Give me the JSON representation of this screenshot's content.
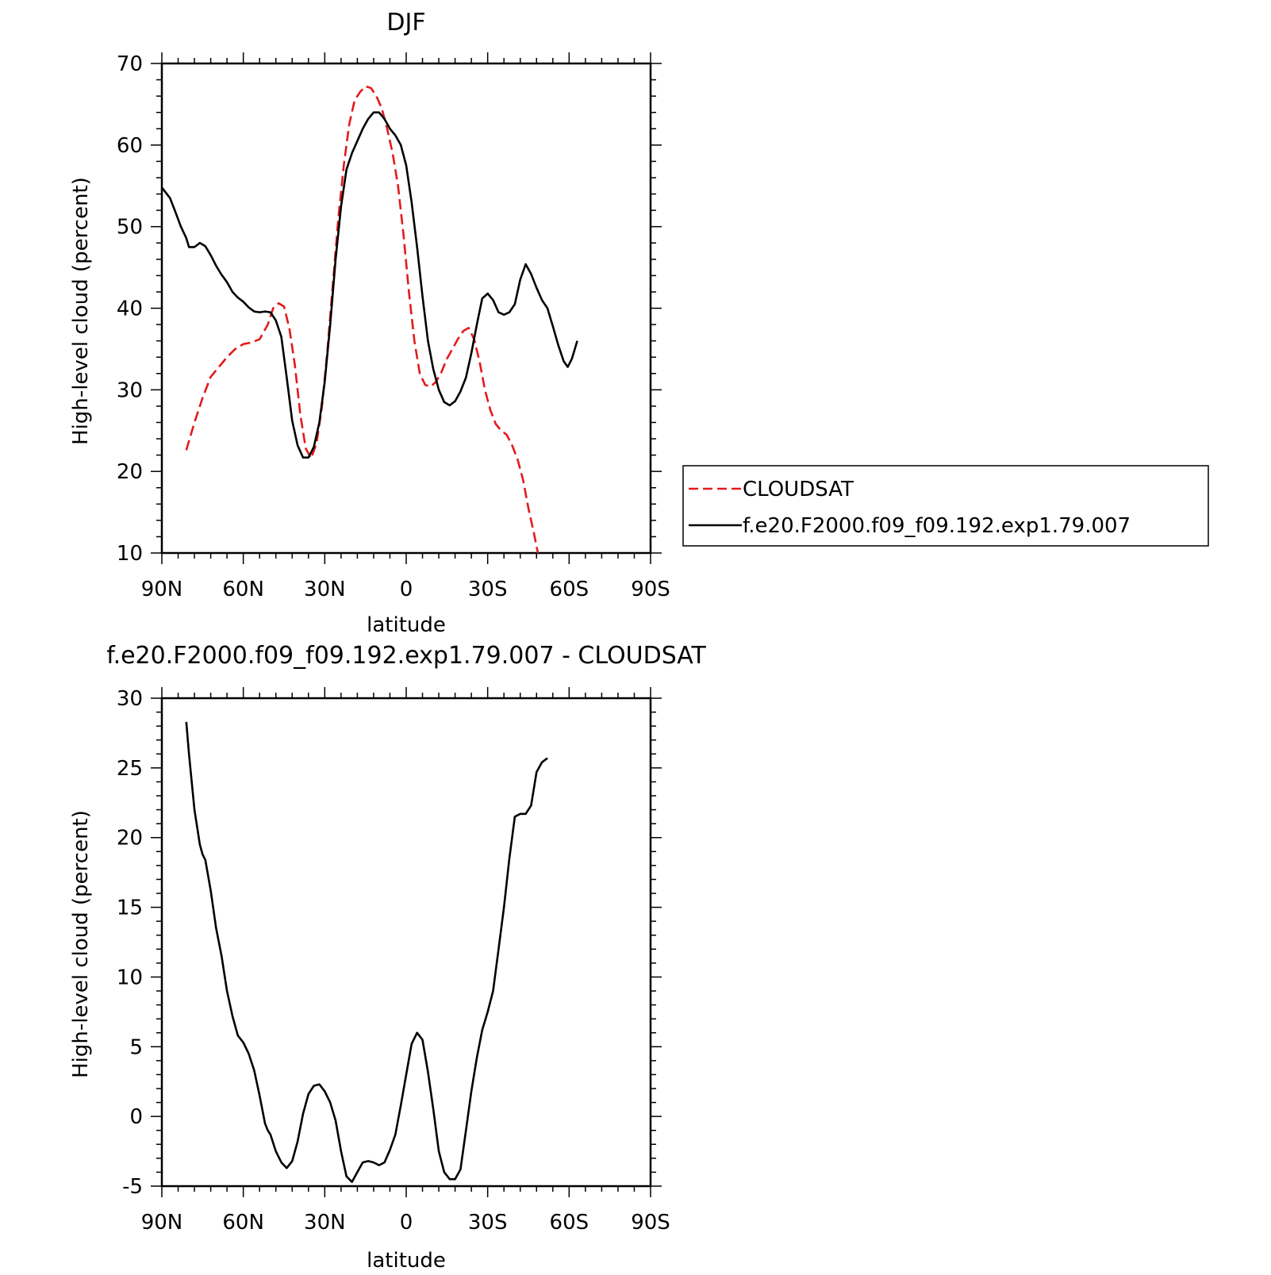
{
  "chart_data": [
    {
      "type": "line",
      "title": "DJF",
      "xlabel": "latitude",
      "ylabel": "High-level cloud (percent)",
      "xlim": [
        90,
        -90
      ],
      "ylim": [
        10,
        70
      ],
      "xtick_values": [
        90,
        60,
        30,
        0,
        -30,
        -60,
        -90
      ],
      "xtick_labels": [
        "90N",
        "60N",
        "30N",
        "0",
        "30S",
        "60S",
        "90S"
      ],
      "ytick_values": [
        10,
        20,
        30,
        40,
        50,
        60,
        70
      ],
      "ytick_labels": [
        "10",
        "20",
        "30",
        "40",
        "50",
        "60",
        "70"
      ],
      "legend_position": "right",
      "series": [
        {
          "name": "CLOUDSAT",
          "color": "#e41a1c",
          "dash": "dashed",
          "points": [
            [
              81,
              22.6
            ],
            [
              78,
              26.0
            ],
            [
              75,
              29.0
            ],
            [
              72,
              31.6
            ],
            [
              69,
              32.8
            ],
            [
              66,
              34.0
            ],
            [
              63,
              35.0
            ],
            [
              60,
              35.6
            ],
            [
              57,
              35.8
            ],
            [
              54,
              36.2
            ],
            [
              51,
              38.0
            ],
            [
              49,
              40.0
            ],
            [
              47,
              40.6
            ],
            [
              45,
              40.2
            ],
            [
              43,
              37.5
            ],
            [
              41,
              33.0
            ],
            [
              39,
              27.0
            ],
            [
              37,
              22.8
            ],
            [
              35,
              21.6
            ],
            [
              33,
              23.5
            ],
            [
              31,
              28.0
            ],
            [
              29,
              35.0
            ],
            [
              27,
              43.0
            ],
            [
              25,
              51.0
            ],
            [
              23,
              57.5
            ],
            [
              21,
              62.5
            ],
            [
              19,
              65.5
            ],
            [
              17,
              66.5
            ],
            [
              15,
              67.2
            ],
            [
              13,
              67.0
            ],
            [
              11,
              66.0
            ],
            [
              9,
              64.5
            ],
            [
              7,
              62.0
            ],
            [
              5,
              59.0
            ],
            [
              3,
              55.0
            ],
            [
              1,
              49.0
            ],
            [
              -1,
              42.0
            ],
            [
              -3,
              36.0
            ],
            [
              -5,
              32.0
            ],
            [
              -7,
              30.6
            ],
            [
              -9,
              30.4
            ],
            [
              -11,
              31.0
            ],
            [
              -13,
              32.2
            ],
            [
              -15,
              33.8
            ],
            [
              -17,
              35.0
            ],
            [
              -19,
              36.2
            ],
            [
              -21,
              37.2
            ],
            [
              -23,
              37.6
            ],
            [
              -25,
              36.2
            ],
            [
              -27,
              33.5
            ],
            [
              -29,
              30.0
            ],
            [
              -31,
              27.5
            ],
            [
              -33,
              25.8
            ],
            [
              -35,
              25.0
            ],
            [
              -37,
              24.5
            ],
            [
              -39,
              23.2
            ],
            [
              -41,
              21.5
            ],
            [
              -43,
              19.0
            ],
            [
              -45,
              15.5
            ],
            [
              -47,
              12.5
            ],
            [
              -48.5,
              10.0
            ]
          ]
        },
        {
          "name": "f.e20.F2000.f09_f09.192.exp1.79.007",
          "color": "#000000",
          "dash": "solid",
          "points": [
            [
              90,
              54.8
            ],
            [
              87,
              53.5
            ],
            [
              85,
              51.8
            ],
            [
              83,
              50.0
            ],
            [
              81,
              48.6
            ],
            [
              80,
              47.5
            ],
            [
              78,
              47.5
            ],
            [
              76,
              48.0
            ],
            [
              74,
              47.6
            ],
            [
              72,
              46.5
            ],
            [
              70,
              45.2
            ],
            [
              68,
              44.1
            ],
            [
              66,
              43.2
            ],
            [
              64,
              42.0
            ],
            [
              62,
              41.3
            ],
            [
              60,
              40.8
            ],
            [
              58,
              40.1
            ],
            [
              56,
              39.6
            ],
            [
              54,
              39.5
            ],
            [
              52,
              39.6
            ],
            [
              50,
              39.5
            ],
            [
              48,
              38.5
            ],
            [
              46,
              36.5
            ],
            [
              44,
              31.5
            ],
            [
              42,
              26.2
            ],
            [
              40,
              23.2
            ],
            [
              38,
              21.7
            ],
            [
              36,
              21.7
            ],
            [
              34,
              23.0
            ],
            [
              32,
              26.0
            ],
            [
              30,
              31.0
            ],
            [
              28,
              38.0
            ],
            [
              26,
              46.0
            ],
            [
              24,
              52.5
            ],
            [
              22,
              57.0
            ],
            [
              20,
              59.0
            ],
            [
              18,
              60.5
            ],
            [
              16,
              62.0
            ],
            [
              14,
              63.2
            ],
            [
              12,
              64.0
            ],
            [
              10,
              64.0
            ],
            [
              8,
              63.2
            ],
            [
              6,
              62.0
            ],
            [
              4,
              61.2
            ],
            [
              2,
              60.0
            ],
            [
              0,
              57.5
            ],
            [
              -2,
              53.0
            ],
            [
              -4,
              47.5
            ],
            [
              -6,
              41.5
            ],
            [
              -8,
              36.0
            ],
            [
              -10,
              32.5
            ],
            [
              -12,
              30.0
            ],
            [
              -14,
              28.5
            ],
            [
              -16,
              28.1
            ],
            [
              -18,
              28.6
            ],
            [
              -20,
              29.8
            ],
            [
              -22,
              31.5
            ],
            [
              -24,
              34.5
            ],
            [
              -26,
              38.0
            ],
            [
              -28,
              41.2
            ],
            [
              -30,
              41.8
            ],
            [
              -32,
              41.0
            ],
            [
              -34,
              39.5
            ],
            [
              -36,
              39.2
            ],
            [
              -38,
              39.5
            ],
            [
              -40,
              40.5
            ],
            [
              -42,
              43.5
            ],
            [
              -44,
              45.4
            ],
            [
              -46,
              44.2
            ],
            [
              -48,
              42.5
            ],
            [
              -50,
              41.0
            ],
            [
              -52,
              40.0
            ],
            [
              -54,
              37.8
            ],
            [
              -56,
              35.5
            ],
            [
              -58,
              33.5
            ],
            [
              -59.5,
              32.8
            ],
            [
              -61,
              33.8
            ],
            [
              -63,
              36.0
            ]
          ]
        }
      ]
    },
    {
      "type": "line",
      "title": "f.e20.F2000.f09_f09.192.exp1.79.007 - CLOUDSAT",
      "xlabel": "latitude",
      "ylabel": "High-level cloud (percent)",
      "xlim": [
        90,
        -90
      ],
      "ylim": [
        -5,
        30
      ],
      "xtick_values": [
        90,
        60,
        30,
        0,
        -30,
        -60,
        -90
      ],
      "xtick_labels": [
        "90N",
        "60N",
        "30N",
        "0",
        "30S",
        "60S",
        "90S"
      ],
      "ytick_values": [
        -5,
        0,
        5,
        10,
        15,
        20,
        25,
        30
      ],
      "ytick_labels": [
        "-5",
        "0",
        "5",
        "10",
        "15",
        "20",
        "25",
        "30"
      ],
      "series": [
        {
          "color": "#000000",
          "dash": "solid",
          "points": [
            [
              81,
              28.3
            ],
            [
              80,
              26.0
            ],
            [
              78,
              22.0
            ],
            [
              76,
              19.5
            ],
            [
              75,
              18.8
            ],
            [
              74,
              18.4
            ],
            [
              72,
              16.2
            ],
            [
              70,
              13.5
            ],
            [
              68,
              11.5
            ],
            [
              66,
              9.0
            ],
            [
              64,
              7.2
            ],
            [
              62,
              5.8
            ],
            [
              60,
              5.3
            ],
            [
              58,
              4.5
            ],
            [
              56,
              3.3
            ],
            [
              54,
              1.5
            ],
            [
              52,
              -0.5
            ],
            [
              51,
              -1.0
            ],
            [
              50,
              -1.3
            ],
            [
              48,
              -2.5
            ],
            [
              46,
              -3.3
            ],
            [
              44,
              -3.7
            ],
            [
              42,
              -3.2
            ],
            [
              40,
              -1.8
            ],
            [
              38,
              0.2
            ],
            [
              36,
              1.6
            ],
            [
              34,
              2.2
            ],
            [
              32,
              2.3
            ],
            [
              30,
              1.8
            ],
            [
              28,
              1.0
            ],
            [
              26,
              -0.3
            ],
            [
              24,
              -2.5
            ],
            [
              22,
              -4.3
            ],
            [
              20,
              -4.7
            ],
            [
              18,
              -4.0
            ],
            [
              16,
              -3.3
            ],
            [
              14,
              -3.2
            ],
            [
              12,
              -3.3
            ],
            [
              10,
              -3.5
            ],
            [
              8,
              -3.3
            ],
            [
              6,
              -2.4
            ],
            [
              4,
              -1.3
            ],
            [
              2,
              0.8
            ],
            [
              0,
              3.0
            ],
            [
              -2,
              5.2
            ],
            [
              -4,
              6.0
            ],
            [
              -6,
              5.5
            ],
            [
              -8,
              3.2
            ],
            [
              -10,
              0.5
            ],
            [
              -12,
              -2.5
            ],
            [
              -14,
              -4.0
            ],
            [
              -16,
              -4.5
            ],
            [
              -18,
              -4.5
            ],
            [
              -20,
              -3.8
            ],
            [
              -22,
              -1.0
            ],
            [
              -24,
              1.8
            ],
            [
              -26,
              4.2
            ],
            [
              -28,
              6.2
            ],
            [
              -30,
              7.5
            ],
            [
              -32,
              9.0
            ],
            [
              -34,
              12.0
            ],
            [
              -36,
              15.0
            ],
            [
              -38,
              18.5
            ],
            [
              -40,
              21.5
            ],
            [
              -42,
              21.7
            ],
            [
              -44,
              21.7
            ],
            [
              -46,
              22.3
            ],
            [
              -48,
              24.7
            ],
            [
              -50,
              25.4
            ],
            [
              -52,
              25.7
            ]
          ]
        }
      ]
    }
  ]
}
